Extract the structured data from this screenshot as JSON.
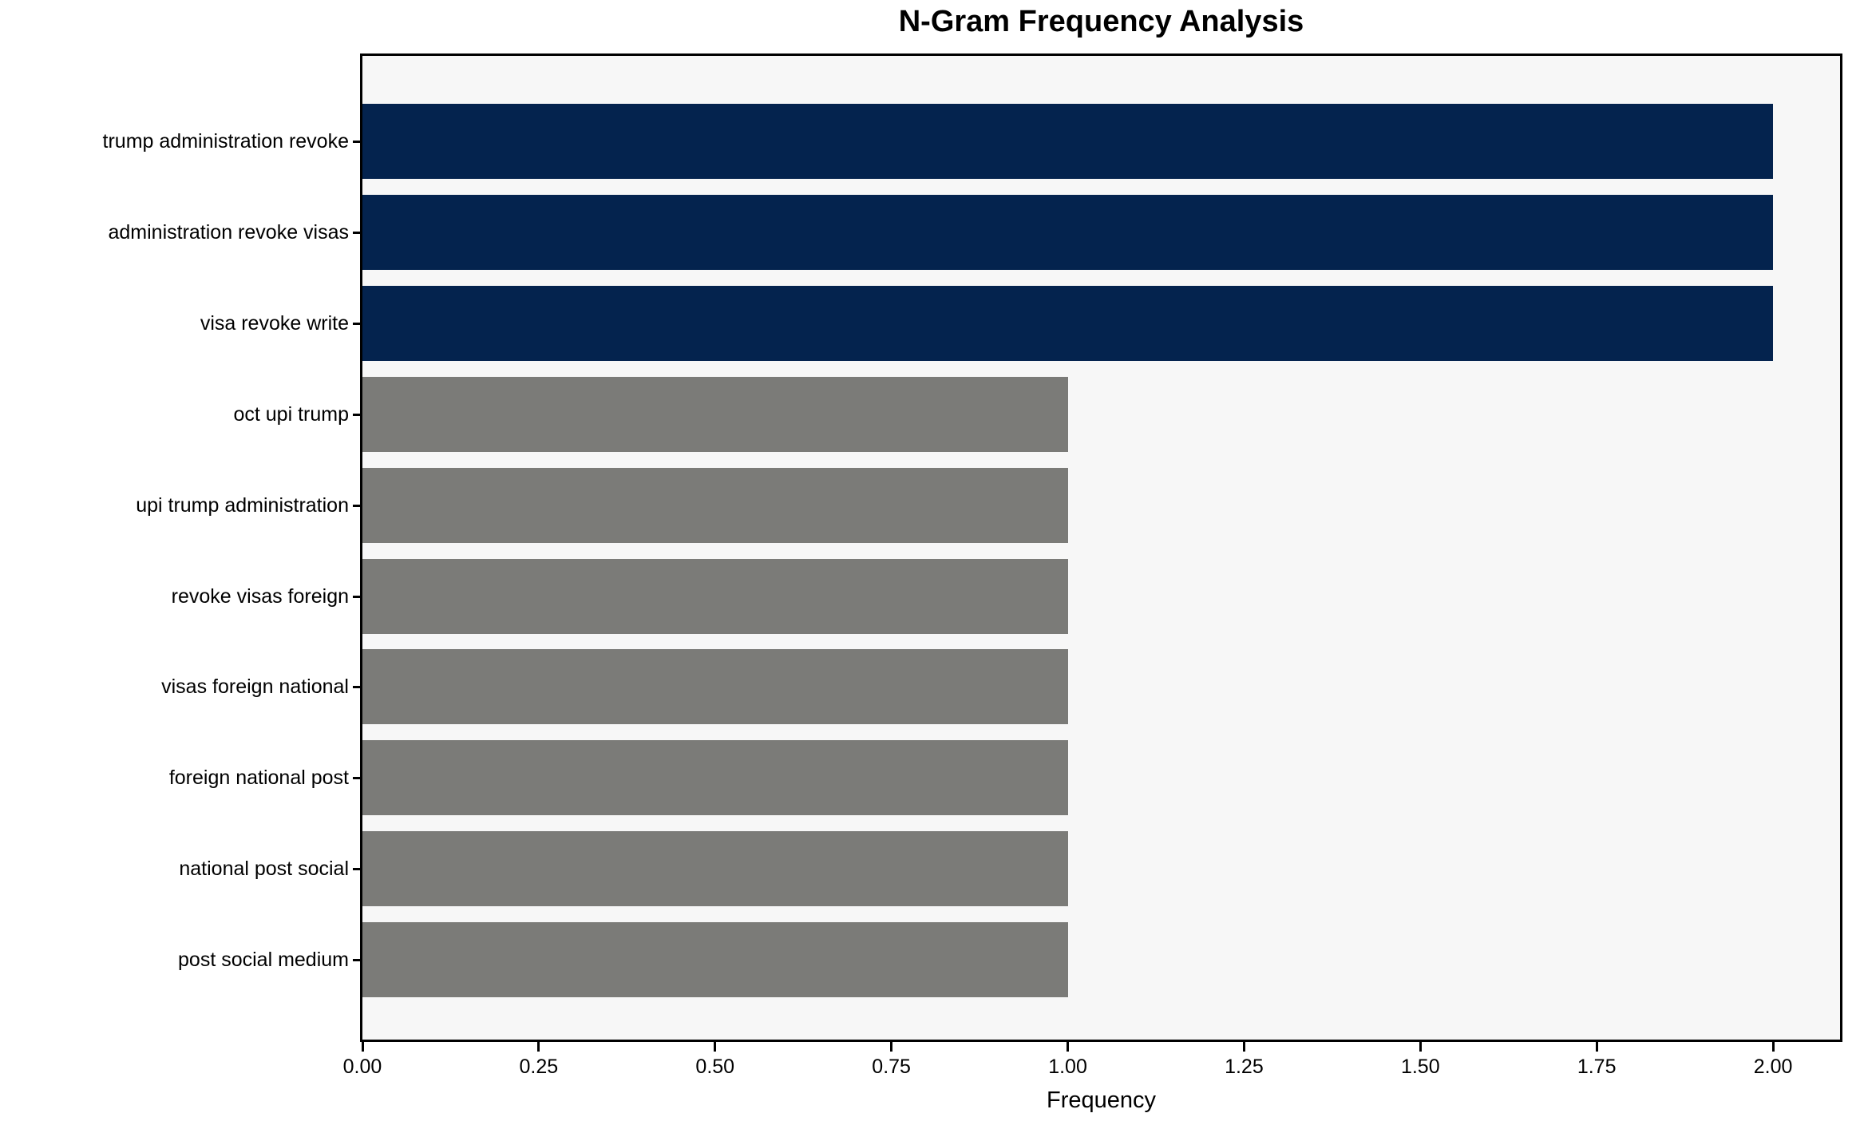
{
  "title": "N-Gram Frequency Analysis",
  "colors": {
    "highlight_bar": "#04234e",
    "default_bar": "#7b7b78",
    "plot_background": "#f7f7f7",
    "figure_background": "#ffffff",
    "spine": "#000000",
    "text": "#000000"
  },
  "chart_data": {
    "type": "bar",
    "orientation": "horizontal",
    "title": "N-Gram Frequency Analysis",
    "categories": [
      "trump administration revoke",
      "administration revoke visas",
      "visa revoke write",
      "oct upi trump",
      "upi trump administration",
      "revoke visas foreign",
      "visas foreign national",
      "foreign national post",
      "national post social",
      "post social medium"
    ],
    "values": [
      2,
      2,
      2,
      1,
      1,
      1,
      1,
      1,
      1,
      1
    ],
    "bar_colors": [
      "#04234e",
      "#04234e",
      "#04234e",
      "#7b7b78",
      "#7b7b78",
      "#7b7b78",
      "#7b7b78",
      "#7b7b78",
      "#7b7b78",
      "#7b7b78"
    ],
    "xlabel": "Frequency",
    "ylabel": "",
    "xlim": [
      0,
      2.095
    ],
    "xticks": [
      0,
      0.25,
      0.5,
      0.75,
      1.0,
      1.25,
      1.5,
      1.75,
      2.0
    ],
    "xtick_labels": [
      "0.00",
      "0.25",
      "0.50",
      "0.75",
      "1.00",
      "1.25",
      "1.50",
      "1.75",
      "2.00"
    ],
    "grid": false,
    "legend": null
  }
}
